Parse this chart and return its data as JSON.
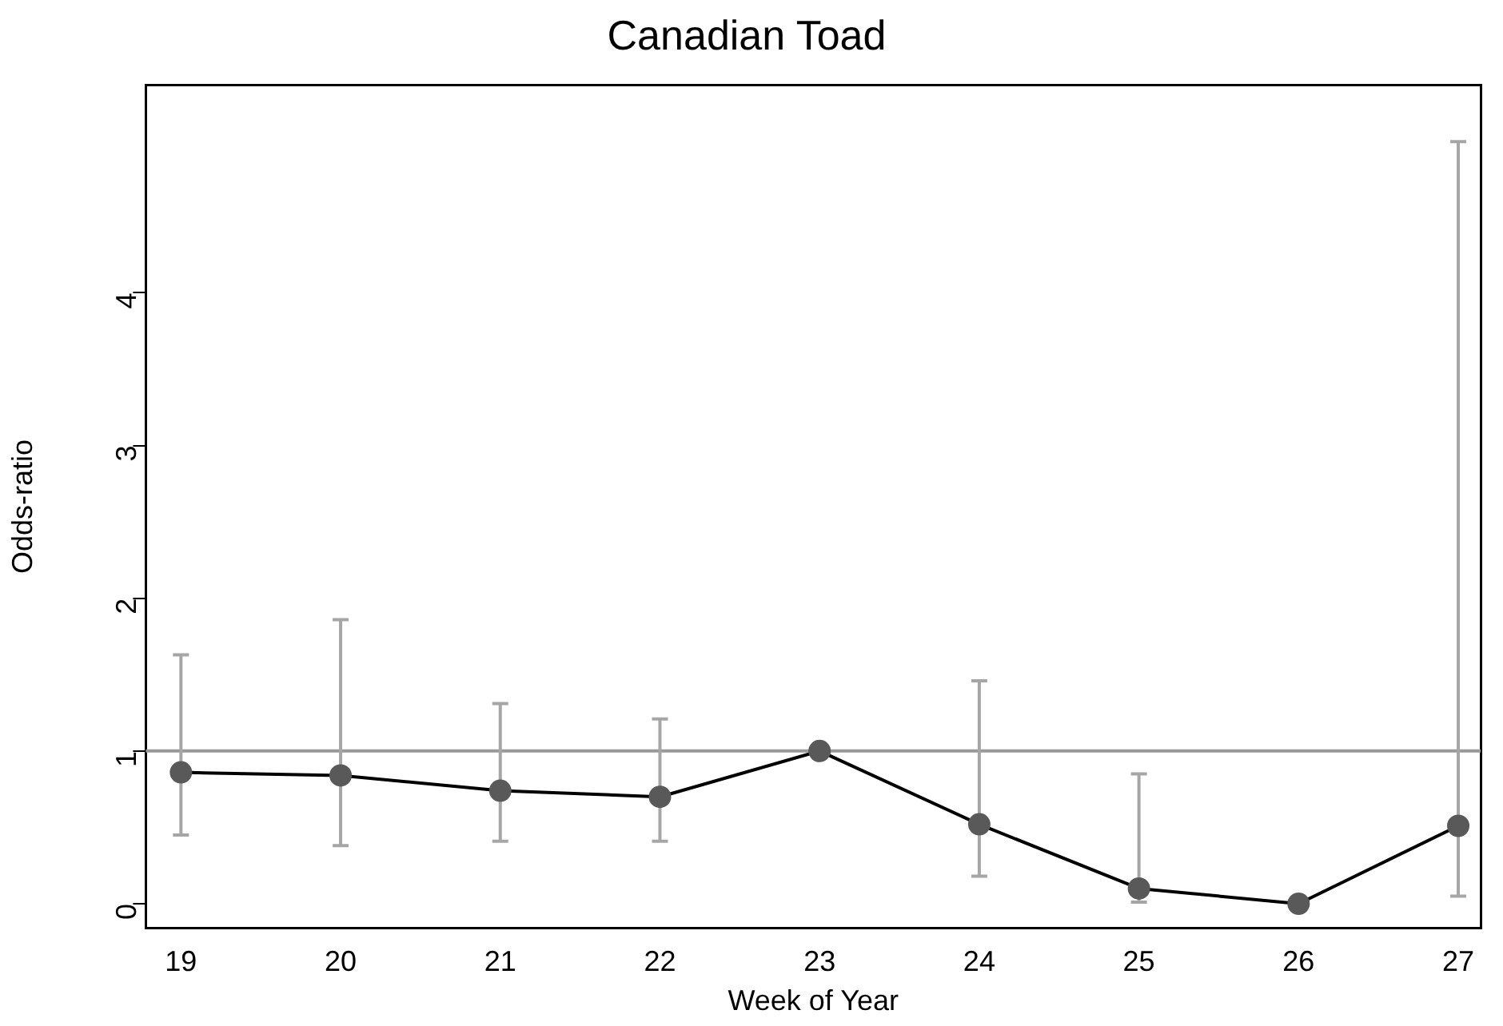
{
  "chart_data": {
    "type": "line",
    "title": "Canadian Toad",
    "xlabel": "Week of Year",
    "ylabel": "Odds-ratio",
    "x": [
      19,
      20,
      21,
      22,
      23,
      24,
      25,
      26,
      27
    ],
    "series": [
      {
        "color": "#000000",
        "values": [
          0.86,
          0.84,
          0.74,
          0.7,
          1.0,
          0.52,
          0.1,
          0.0,
          0.51
        ],
        "errors": [
          [
            0.45,
            1.63
          ],
          [
            0.38,
            1.86
          ],
          [
            0.41,
            1.31
          ],
          [
            0.41,
            1.21
          ],
          null,
          [
            0.18,
            1.46
          ],
          [
            0.01,
            0.85
          ],
          null,
          [
            0.05,
            4.99
          ]
        ]
      }
    ],
    "xlim": [
      18.78,
      27.14
    ],
    "xticks": [
      19,
      20,
      21,
      22,
      23,
      24,
      25,
      26,
      27
    ],
    "ylim": [
      -0.16,
      5.36
    ],
    "yticks": [
      0,
      1,
      2,
      3,
      4
    ],
    "ref_lines": [
      {
        "axis": "y",
        "value": 1,
        "color": "#999999"
      }
    ],
    "marker": "circle",
    "line_style": "solid",
    "grid": false,
    "legend": false
  }
}
